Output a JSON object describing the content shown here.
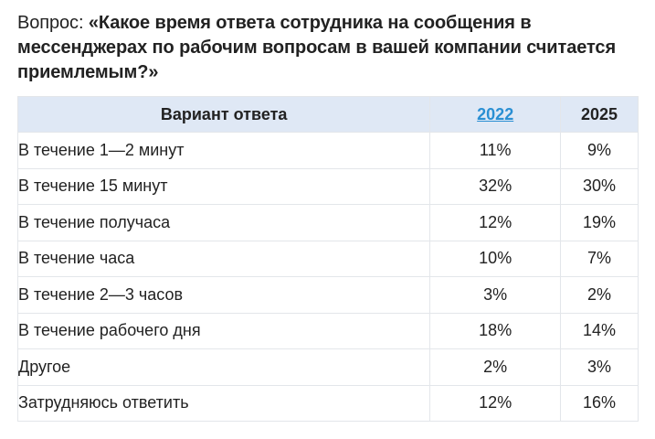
{
  "question": {
    "prefix": "Вопрос: ",
    "text": "«Какое время ответа сотрудника на сообщения в мессенджерах по рабочим вопросам в вашей компании считается приемлемым?»"
  },
  "table": {
    "headers": {
      "option": "Вариант ответа",
      "year_a": "2022",
      "year_b": "2025"
    },
    "colors": {
      "header_bg": "#dfe8f5",
      "link": "#2a8fd3",
      "border": "#e3e6ea"
    },
    "rows": [
      {
        "option": "В течение 1—2 минут",
        "y2022": "11%",
        "y2025": "9%"
      },
      {
        "option": "В течение 15 минут",
        "y2022": "32%",
        "y2025": "30%"
      },
      {
        "option": "В течение получаса",
        "y2022": "12%",
        "y2025": "19%"
      },
      {
        "option": "В течение часа",
        "y2022": "10%",
        "y2025": "7%"
      },
      {
        "option": "В течение 2—3 часов",
        "y2022": "3%",
        "y2025": "2%"
      },
      {
        "option": "В течение рабочего дня",
        "y2022": "18%",
        "y2025": "14%"
      },
      {
        "option": "Другое",
        "y2022": "2%",
        "y2025": "3%"
      },
      {
        "option": "Затрудняюсь ответить",
        "y2022": "12%",
        "y2025": "16%"
      }
    ]
  }
}
